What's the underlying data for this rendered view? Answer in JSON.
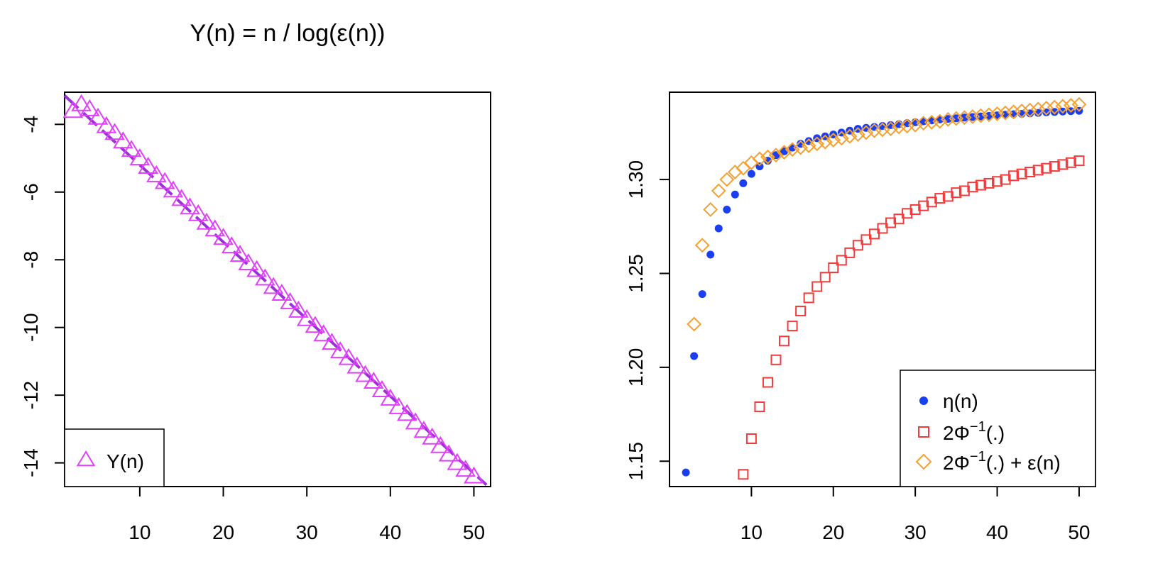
{
  "chart_data": [
    {
      "type": "scatter",
      "title": "Y(n) = n / log(ε(n))",
      "xlabel": "",
      "ylabel": "",
      "xlim": [
        1,
        52
      ],
      "ylim": [
        -14.7,
        -3.05
      ],
      "xticks": [
        10,
        20,
        30,
        40,
        50
      ],
      "xtick_labels": [
        "10",
        "20",
        "30",
        "40",
        "50"
      ],
      "yticks": [
        -4,
        -6,
        -8,
        -10,
        -12,
        -14
      ],
      "ytick_labels": [
        "-4",
        "-6",
        "-8",
        "-10",
        "-12",
        "-14"
      ],
      "legend": {
        "position": "bottom-left",
        "entries": [
          {
            "label": "Y(n)",
            "marker": "triangle",
            "color": "#e040fb"
          }
        ]
      },
      "series": [
        {
          "name": "Y(n)",
          "marker": "triangle",
          "color": "#e040fb",
          "x": [
            2,
            3,
            4,
            5,
            6,
            7,
            8,
            9,
            10,
            11,
            12,
            13,
            14,
            15,
            16,
            17,
            18,
            19,
            20,
            21,
            22,
            23,
            24,
            25,
            26,
            27,
            28,
            29,
            30,
            31,
            32,
            33,
            34,
            35,
            36,
            37,
            38,
            39,
            40,
            41,
            42,
            43,
            44,
            45,
            46,
            47,
            48,
            49,
            50
          ],
          "y": [
            -3.6,
            -3.4,
            -3.55,
            -3.8,
            -4.05,
            -4.25,
            -4.5,
            -4.75,
            -5.0,
            -5.25,
            -5.5,
            -5.7,
            -5.95,
            -6.2,
            -6.45,
            -6.65,
            -6.9,
            -7.1,
            -7.35,
            -7.6,
            -7.85,
            -8.1,
            -8.3,
            -8.55,
            -8.8,
            -9.0,
            -9.25,
            -9.5,
            -9.75,
            -9.95,
            -10.2,
            -10.45,
            -10.7,
            -10.9,
            -11.15,
            -11.4,
            -11.6,
            -11.85,
            -12.1,
            -12.35,
            -12.55,
            -12.8,
            -13.05,
            -13.25,
            -13.5,
            -13.75,
            -14.0,
            -14.2,
            -14.4
          ]
        }
      ],
      "reference_line": {
        "style": "dashed",
        "color": "#9b30d9",
        "x": [
          1,
          51.5
        ],
        "y": [
          -3.15,
          -14.65
        ]
      }
    },
    {
      "type": "scatter",
      "title": "",
      "xlabel": "",
      "ylabel": "",
      "xlim": [
        0,
        52
      ],
      "ylim": [
        1.1365,
        1.3465
      ],
      "xticks": [
        10,
        20,
        30,
        40,
        50
      ],
      "xtick_labels": [
        "10",
        "20",
        "30",
        "40",
        "50"
      ],
      "yticks": [
        1.15,
        1.2,
        1.25,
        1.3
      ],
      "ytick_labels": [
        "1.15",
        "1.20",
        "1.25",
        "1.30"
      ],
      "legend": {
        "position": "bottom-right",
        "entries": [
          {
            "label": "η(n)",
            "marker": "circle",
            "color": "#1a3ff0"
          },
          {
            "label_base": "2Φ",
            "label_sup": "−1",
            "label_tail": "(.)",
            "marker": "square",
            "color": "#f03c3c"
          },
          {
            "label_base": "2Φ",
            "label_sup": "−1",
            "label_tail": "(.) + ε(n)",
            "marker": "diamond",
            "color": "#f5a030"
          }
        ]
      },
      "series": [
        {
          "name": "η(n)",
          "marker": "circle",
          "color": "#1a3ff0",
          "x": [
            2,
            3,
            4,
            5,
            6,
            7,
            8,
            9,
            10,
            11,
            12,
            13,
            14,
            15,
            16,
            17,
            18,
            19,
            20,
            21,
            22,
            23,
            24,
            25,
            26,
            27,
            28,
            29,
            30,
            31,
            32,
            33,
            34,
            35,
            36,
            37,
            38,
            39,
            40,
            41,
            42,
            43,
            44,
            45,
            46,
            47,
            48,
            49,
            50
          ],
          "y": [
            1.144,
            1.206,
            1.239,
            1.26,
            1.274,
            1.284,
            1.292,
            1.298,
            1.303,
            1.307,
            1.31,
            1.313,
            1.315,
            1.317,
            1.319,
            1.3205,
            1.322,
            1.323,
            1.324,
            1.325,
            1.326,
            1.327,
            1.3275,
            1.328,
            1.3285,
            1.329,
            1.3295,
            1.33,
            1.3305,
            1.331,
            1.3315,
            1.332,
            1.3323,
            1.3326,
            1.333,
            1.3333,
            1.3336,
            1.3339,
            1.3342,
            1.3345,
            1.3348,
            1.335,
            1.3352,
            1.3355,
            1.3358,
            1.336,
            1.3362,
            1.3364,
            1.3366
          ]
        },
        {
          "name": "2Φ⁻¹(.)",
          "marker": "square",
          "color": "#f03c3c",
          "x": [
            9,
            10,
            11,
            12,
            13,
            14,
            15,
            16,
            17,
            18,
            19,
            20,
            21,
            22,
            23,
            24,
            25,
            26,
            27,
            28,
            29,
            30,
            31,
            32,
            33,
            34,
            35,
            36,
            37,
            38,
            39,
            40,
            41,
            42,
            43,
            44,
            45,
            46,
            47,
            48,
            49,
            50
          ],
          "y": [
            1.143,
            1.162,
            1.179,
            1.192,
            1.204,
            1.214,
            1.222,
            1.23,
            1.237,
            1.243,
            1.248,
            1.253,
            1.257,
            1.261,
            1.265,
            1.268,
            1.271,
            1.274,
            1.277,
            1.279,
            1.282,
            1.284,
            1.286,
            1.288,
            1.29,
            1.291,
            1.293,
            1.294,
            1.296,
            1.297,
            1.298,
            1.299,
            1.3,
            1.302,
            1.303,
            1.304,
            1.305,
            1.306,
            1.307,
            1.308,
            1.309,
            1.31
          ]
        },
        {
          "name": "2Φ⁻¹(.) + ε(n)",
          "marker": "diamond",
          "color": "#f5a030",
          "x": [
            3,
            4,
            5,
            6,
            7,
            8,
            9,
            10,
            11,
            12,
            13,
            14,
            15,
            16,
            17,
            18,
            19,
            20,
            21,
            22,
            23,
            24,
            25,
            26,
            27,
            28,
            29,
            30,
            31,
            32,
            33,
            34,
            35,
            36,
            37,
            38,
            39,
            40,
            41,
            42,
            43,
            44,
            45,
            46,
            47,
            48,
            49,
            50
          ],
          "y": [
            1.223,
            1.265,
            1.284,
            1.294,
            1.3,
            1.304,
            1.306,
            1.309,
            1.311,
            1.312,
            1.313,
            1.3145,
            1.316,
            1.317,
            1.318,
            1.319,
            1.32,
            1.321,
            1.322,
            1.323,
            1.324,
            1.325,
            1.326,
            1.3265,
            1.327,
            1.328,
            1.3285,
            1.329,
            1.33,
            1.3305,
            1.331,
            1.332,
            1.3325,
            1.333,
            1.3335,
            1.334,
            1.3345,
            1.335,
            1.3355,
            1.336,
            1.3365,
            1.337,
            1.3375,
            1.338,
            1.3385,
            1.339,
            1.3395,
            1.34
          ]
        }
      ]
    }
  ]
}
